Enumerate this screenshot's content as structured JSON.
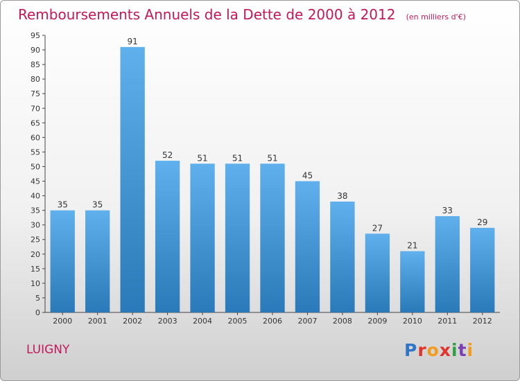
{
  "title": "Remboursements Annuels de la Dette de 2000 à 2012",
  "unit_note": "(en milliers d'€)",
  "commune": "LUIGNY",
  "logo": {
    "text": "Proxiti",
    "brand_colors": [
      "#2f76c7",
      "#e0332c",
      "#f29b1d",
      "#2f9e44",
      "#7b3fb2"
    ]
  },
  "colors": {
    "title": "#c2185b",
    "bar_top": "#5fb0ec",
    "bar_bottom": "#2a79b8"
  },
  "chart_data": {
    "type": "bar",
    "title": "Remboursements Annuels de la Dette de 2000 à 2012",
    "categories": [
      "2000",
      "2001",
      "2002",
      "2003",
      "2004",
      "2005",
      "2006",
      "2007",
      "2008",
      "2009",
      "2010",
      "2011",
      "2012"
    ],
    "values": [
      35,
      35,
      91,
      52,
      51,
      51,
      51,
      45,
      38,
      27,
      21,
      33,
      29
    ],
    "ylim": [
      0,
      95
    ],
    "yticks": [
      0,
      5,
      10,
      15,
      20,
      25,
      30,
      35,
      40,
      45,
      50,
      55,
      60,
      65,
      70,
      75,
      80,
      85,
      90,
      95
    ],
    "grid": false,
    "data_labels": true
  }
}
